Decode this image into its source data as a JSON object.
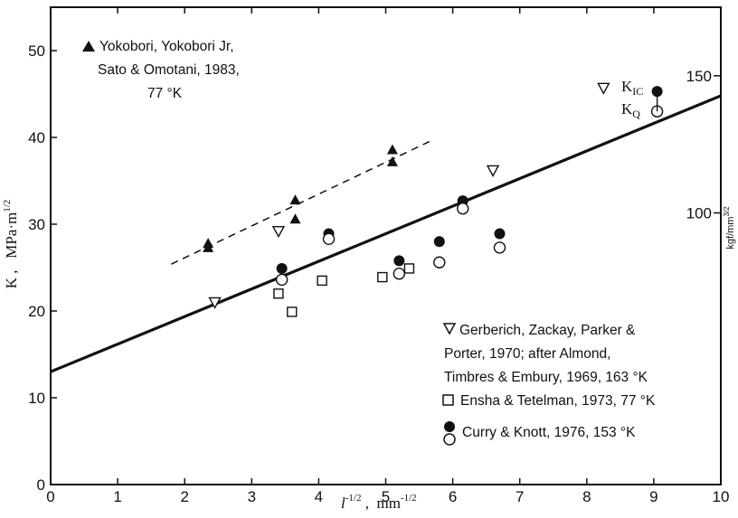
{
  "chart_data": {
    "type": "scatter",
    "xlim": [
      0,
      10
    ],
    "ylim": [
      0,
      55
    ],
    "x_ticks": [
      0,
      1,
      2,
      3,
      4,
      5,
      6,
      7,
      8,
      9,
      10
    ],
    "y_ticks": [
      10,
      20,
      30,
      40,
      50
    ],
    "x_tick_labels": [
      "0",
      "1",
      "2",
      "3",
      "4",
      "5",
      "6",
      "7",
      "8",
      "9",
      "10"
    ],
    "y_tick_labels": [
      "10",
      "20",
      "30",
      "40",
      "50"
    ],
    "y_left_label": "K ,   MPa·m¹ᐟ²",
    "x_label": "l^-1/2 , mm^-1/2",
    "y_right_label": "kgf/mm^3/2",
    "y_right_ticks": [
      {
        "label": "100",
        "value": 31.3
      },
      {
        "label": "150",
        "value": 47.1
      }
    ],
    "series": [
      {
        "name": "Yokobori, Yokobori Jr, Sato & Omotani, 1983, 77 °K",
        "marker": "filled-triangle",
        "points": [
          [
            2.35,
            27.8
          ],
          [
            2.35,
            27.3
          ],
          [
            3.65,
            32.8
          ],
          [
            3.65,
            30.6
          ],
          [
            5.1,
            38.6
          ],
          [
            5.1,
            37.2
          ]
        ]
      },
      {
        "name": "Gerberich, Zackay, Parker & Porter, 1970; after Almond, Timbres & Embury, 1969, 163 °K",
        "marker": "open-inverted-triangle",
        "points": [
          [
            2.45,
            21
          ],
          [
            3.4,
            29.2
          ],
          [
            6.6,
            36.2
          ],
          [
            8.25,
            45.7
          ]
        ]
      },
      {
        "name": "Ensha & Tetelman, 1973, 77 °K",
        "marker": "open-square",
        "points": [
          [
            3.4,
            22
          ],
          [
            3.6,
            19.9
          ],
          [
            4.05,
            23.5
          ],
          [
            4.95,
            23.9
          ],
          [
            5.35,
            24.9
          ]
        ]
      },
      {
        "name": "Curry & Knott, 1976, 153 °K (K_IC)",
        "marker": "filled-circle",
        "points": [
          [
            3.45,
            24.9
          ],
          [
            4.15,
            28.9
          ],
          [
            5.2,
            25.8
          ],
          [
            5.8,
            28
          ],
          [
            6.15,
            32.7
          ],
          [
            6.7,
            28.9
          ],
          [
            9.05,
            45.3
          ]
        ]
      },
      {
        "name": "Curry & Knott, 1976, 153 °K (K_Q)",
        "marker": "open-circle",
        "points": [
          [
            3.45,
            23.6
          ],
          [
            4.15,
            28.3
          ],
          [
            5.2,
            24.3
          ],
          [
            5.8,
            25.6
          ],
          [
            6.15,
            31.8
          ],
          [
            6.7,
            27.3
          ],
          [
            9.05,
            43
          ]
        ]
      }
    ],
    "lines": [
      {
        "style": "solid",
        "from": [
          0,
          13
        ],
        "to": [
          10,
          44.8
        ]
      },
      {
        "style": "dashed",
        "from": [
          1.8,
          25.4
        ],
        "to": [
          5.7,
          39.7
        ]
      }
    ],
    "annotations": {
      "yokobori_lines": [
        "Yokobori, Yokobori Jr,",
        "Sato & Omotani, 1983,",
        "77 °K"
      ],
      "gerberich_lines": [
        "Gerberich, Zackay, Parker &",
        "Porter, 1970; after Almond,",
        "Timbres & Embury, 1969, 163 °K"
      ],
      "ensha_line": "Ensha & Tetelman, 1973, 77 °K",
      "curry_line": "Curry & Knott, 1976, 153 °K",
      "kic_label": "K",
      "kic_sub": "IC",
      "kq_label": "K",
      "kq_sub": "Q"
    }
  }
}
